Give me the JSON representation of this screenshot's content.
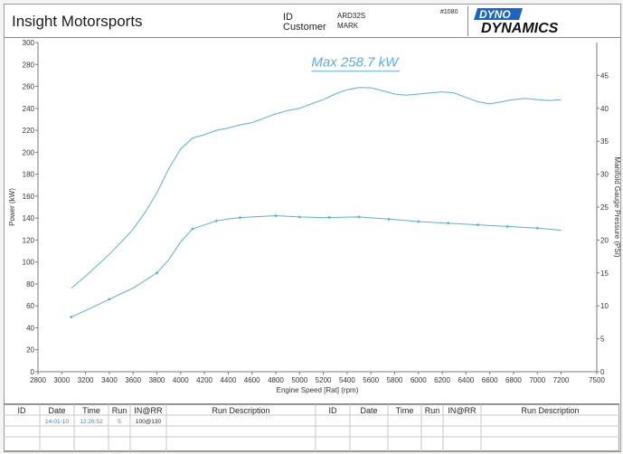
{
  "header": {
    "company": "Insight Motorsports",
    "id_label": "ID",
    "customer_label": "Customer",
    "id_value": "ARD32S",
    "customer_value": "MARK",
    "sheet_number": "#1080",
    "logo_top": "DYNO",
    "logo_bottom": "DYNAMICS"
  },
  "annotation": "Max 258.7 kW",
  "chart_data": {
    "type": "line",
    "xlabel": "Engine Speed [Rat] (rpm)",
    "ylabel": "Power (kW)",
    "y2label": "Manifold Gauge Pressure (PSI)",
    "xlim": [
      2800,
      7500
    ],
    "ylim": [
      0,
      300
    ],
    "y2lim": [
      0,
      50
    ],
    "x_ticks": [
      2800,
      3000,
      3200,
      3400,
      3600,
      3800,
      4000,
      4200,
      4400,
      4600,
      4800,
      5000,
      5200,
      5400,
      5600,
      5800,
      6000,
      6200,
      6400,
      6600,
      6800,
      7000,
      7200,
      7500
    ],
    "y_ticks": [
      0,
      20,
      40,
      60,
      80,
      100,
      120,
      140,
      160,
      180,
      200,
      220,
      240,
      260,
      280,
      300
    ],
    "y2_ticks": [
      0,
      5,
      10,
      15,
      20,
      25,
      30,
      35,
      40,
      45
    ],
    "grid": false,
    "line_color": "#5aaee0",
    "series": [
      {
        "axis": "left",
        "x": [
          3080,
          3200,
          3300,
          3400,
          3500,
          3600,
          3700,
          3800,
          3900,
          4000,
          4100,
          4200,
          4300,
          4400,
          4500,
          4600,
          4700,
          4800,
          4900,
          5000,
          5100,
          5200,
          5300,
          5400,
          5500,
          5600,
          5700,
          5800,
          5900,
          6000,
          6100,
          6200,
          6300,
          6400,
          6500,
          6600,
          6700,
          6800,
          6900,
          7000,
          7100,
          7200
        ],
        "values": [
          76,
          87,
          97,
          107,
          118,
          130,
          145,
          163,
          185,
          203,
          213,
          216,
          220,
          222,
          225,
          227,
          231,
          235,
          238,
          240,
          244,
          248,
          253,
          257,
          259,
          258.7,
          256,
          253,
          252,
          253,
          254,
          255,
          254,
          250,
          246,
          244,
          246,
          248,
          249,
          248,
          247,
          248
        ]
      },
      {
        "axis": "right",
        "x": [
          3080,
          3200,
          3400,
          3600,
          3800,
          3900,
          4000,
          4100,
          4200,
          4300,
          4400,
          4500,
          4600,
          4800,
          5000,
          5200,
          5500,
          5800,
          6000,
          6200,
          6400,
          6600,
          6800,
          7000,
          7200
        ],
        "values": [
          8.3,
          9.3,
          11.0,
          12.7,
          15.0,
          17.0,
          19.7,
          21.7,
          22.3,
          22.9,
          23.2,
          23.4,
          23.5,
          23.7,
          23.5,
          23.4,
          23.5,
          23.1,
          22.8,
          22.6,
          22.4,
          22.2,
          22.0,
          21.8,
          21.5
        ]
      }
    ],
    "marker_x": [
      3080,
      3400,
      3800,
      4100,
      4300,
      4500,
      4800,
      5000,
      5250,
      5500,
      5750,
      6000,
      6250,
      6500,
      6750,
      7000
    ]
  },
  "run_table": {
    "headers": [
      "ID",
      "Date",
      "Time",
      "Run",
      "IN@RR",
      "Run Description",
      "ID",
      "Date",
      "Time",
      "Run",
      "IN@RR",
      "Run Description"
    ],
    "row": {
      "date": "14-01-10",
      "time": "12:26:52",
      "run": "5",
      "in_rr": "100@130"
    }
  }
}
